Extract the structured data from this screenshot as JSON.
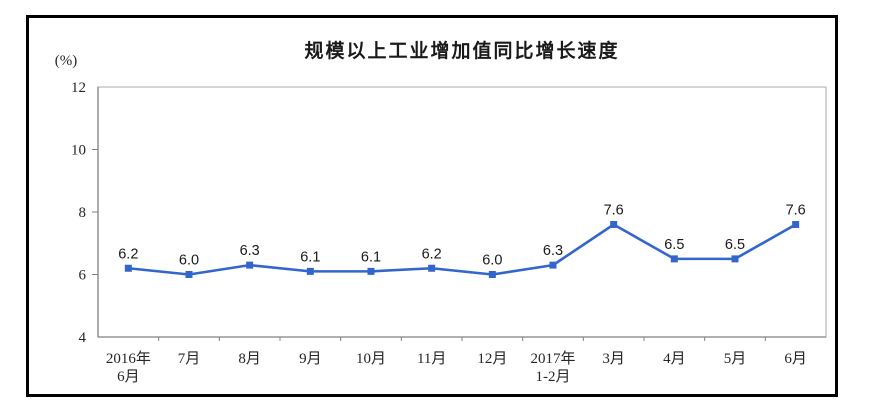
{
  "chart_data": {
    "type": "line",
    "title": "规模以上工业增加值同比增长速度",
    "unit_label": "(%)",
    "categories": [
      "2016年\n6月",
      "7月",
      "8月",
      "9月",
      "10月",
      "11月",
      "12月",
      "2017年\n1-2月",
      "3月",
      "4月",
      "5月",
      "6月"
    ],
    "values": [
      6.2,
      6.0,
      6.3,
      6.1,
      6.1,
      6.2,
      6.0,
      6.3,
      7.6,
      6.5,
      6.5,
      7.6
    ],
    "data_labels": [
      "6.2",
      "6.0",
      "6.3",
      "6.1",
      "6.1",
      "6.2",
      "6.0",
      "6.3",
      "7.6",
      "6.5",
      "6.5",
      "7.6"
    ],
    "ylim": [
      4,
      12
    ],
    "y_ticks": [
      12,
      10,
      8,
      6,
      4
    ],
    "xlabel": "",
    "ylabel": "(%)",
    "grid": false,
    "legend_position": "none",
    "line_color": "#3366CC",
    "marker_shape": "square",
    "text_color": "#262626",
    "axis_color": "#808080",
    "plot_border_color": "#A8A8A8",
    "frame_border_color": "#000000"
  }
}
